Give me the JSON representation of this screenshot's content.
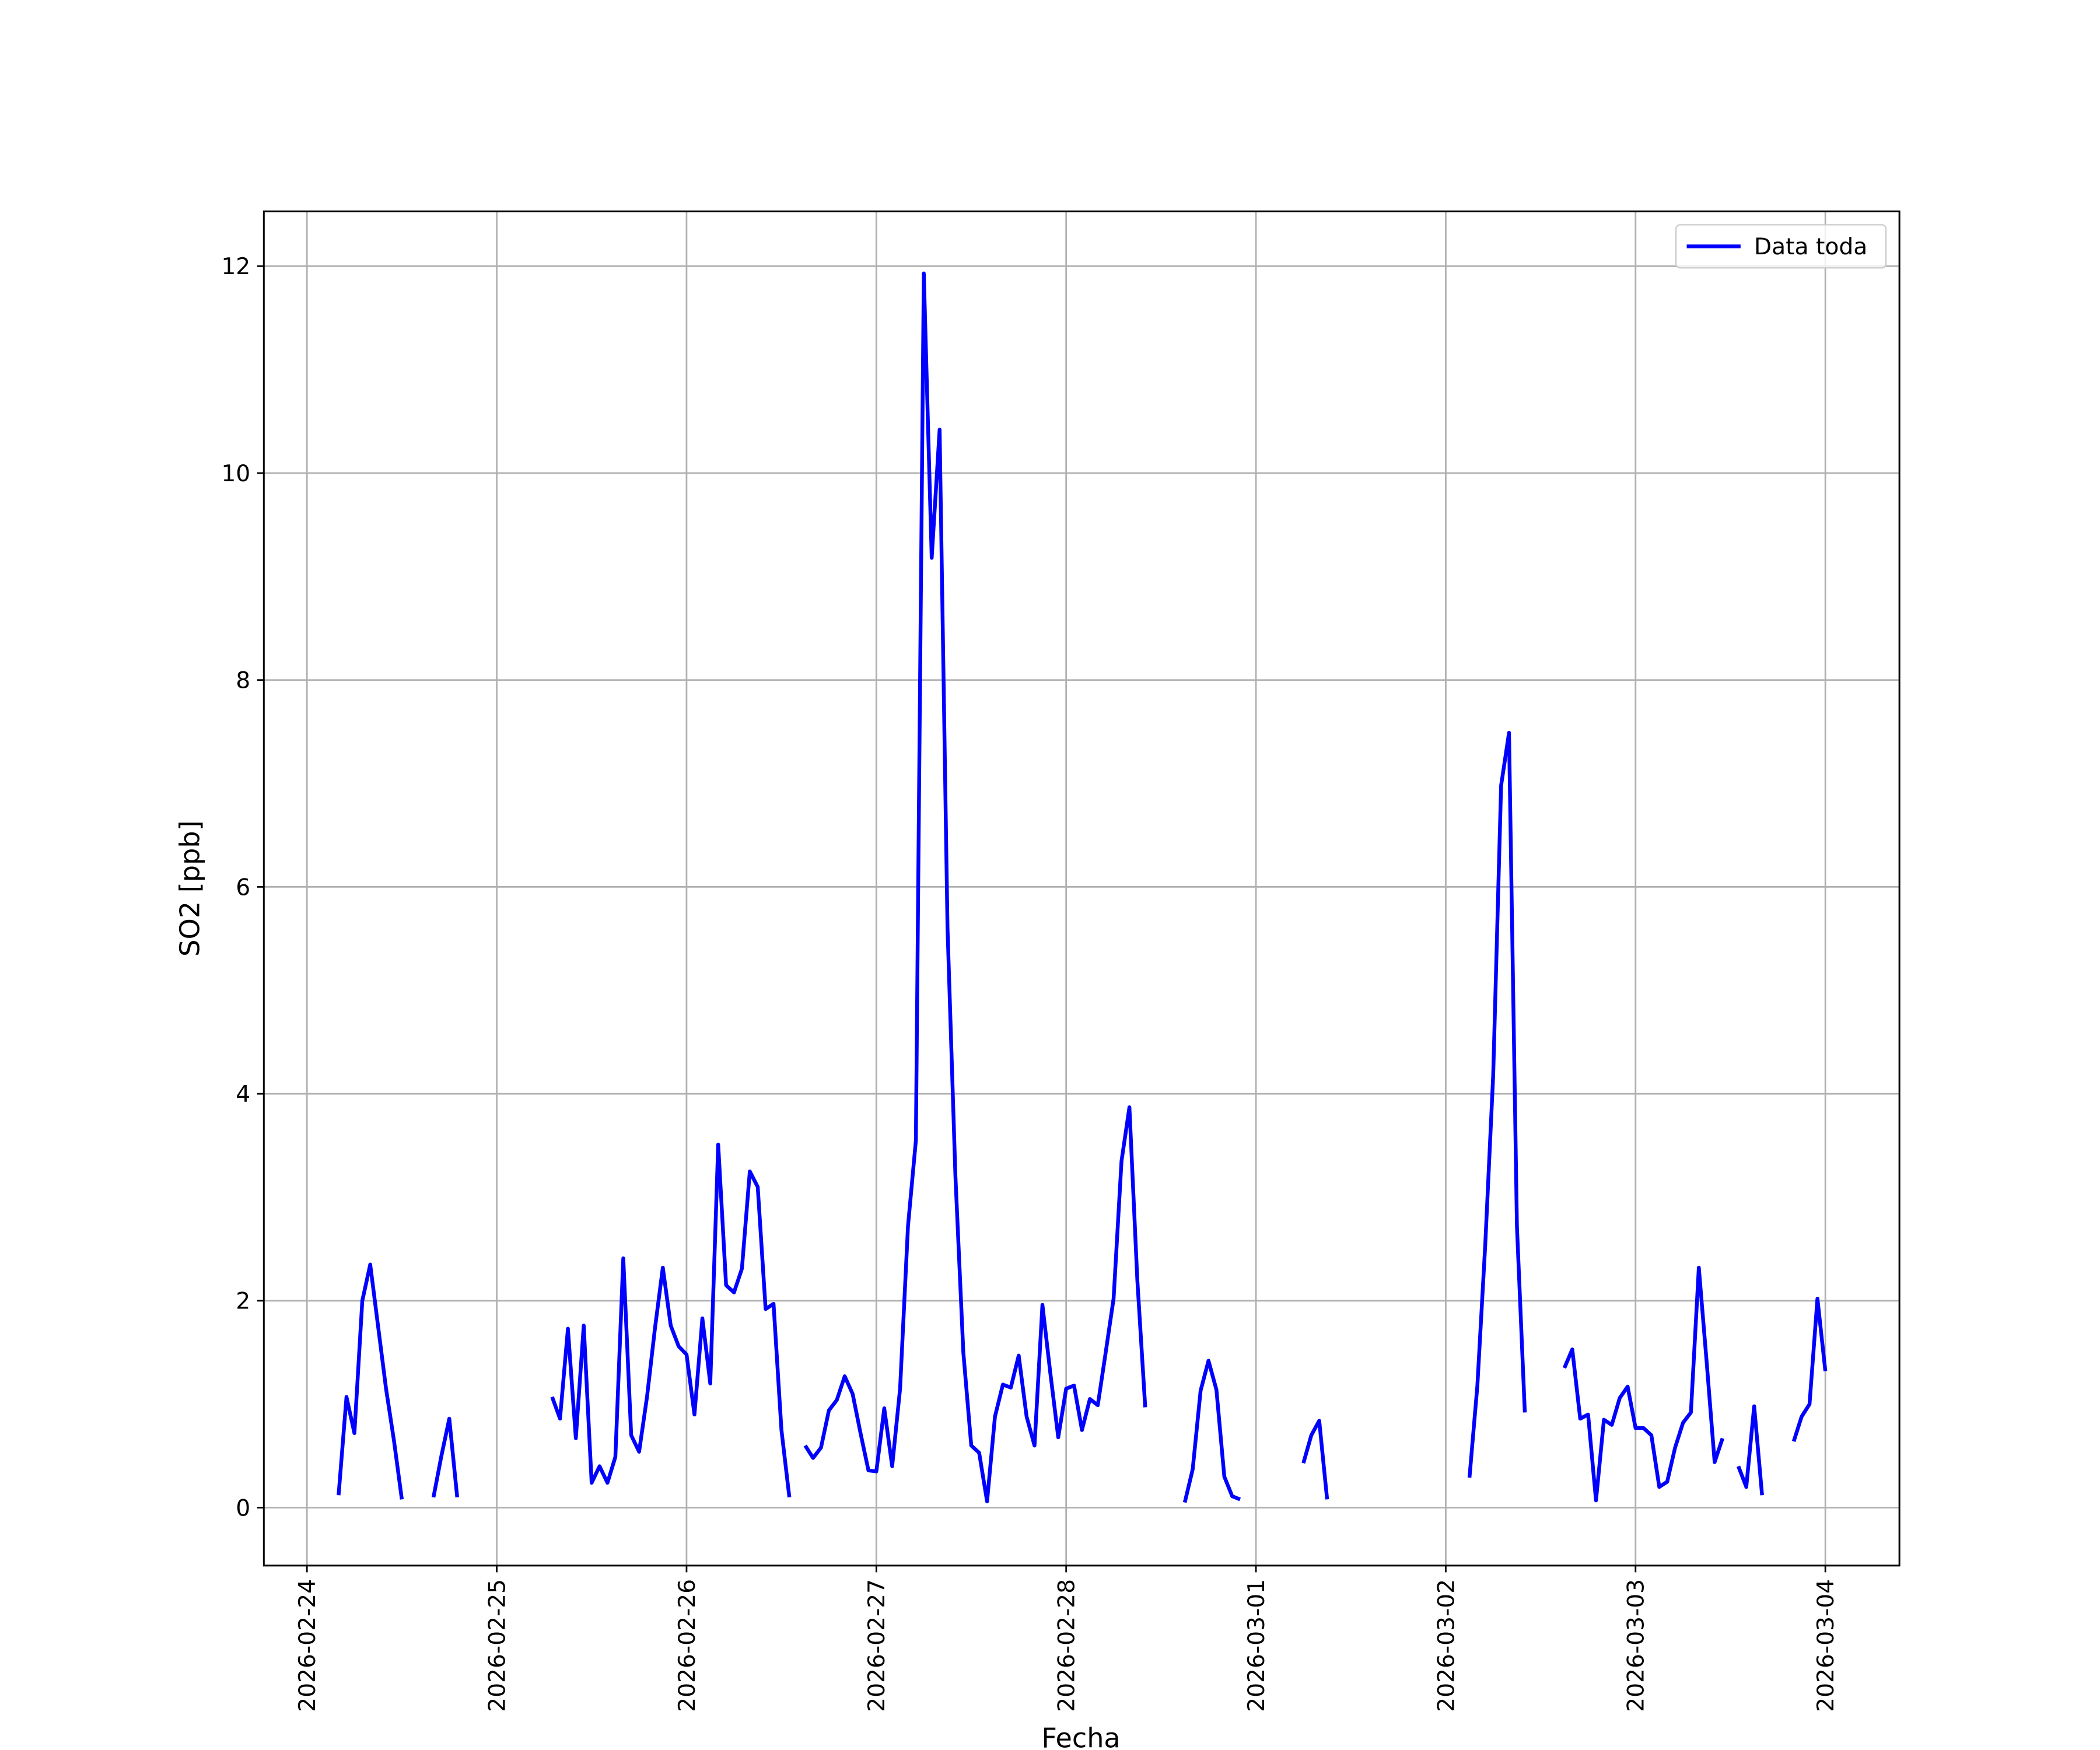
{
  "chart_data": {
    "type": "line",
    "x_label": "Fecha",
    "y_label": "SO2 [ppb]",
    "x": [
      "2026-02-24 04:00",
      "2026-02-24 05:00",
      "2026-02-24 06:00",
      "2026-02-24 07:00",
      "2026-02-24 08:00",
      "2026-02-24 09:00",
      "2026-02-24 10:00",
      "2026-02-24 11:00",
      "2026-02-24 12:00",
      "2026-02-24 13:00",
      "2026-02-24 16:00",
      "2026-02-24 17:00",
      "2026-02-24 18:00",
      "2026-02-24 19:00",
      "2026-02-24 20:00",
      "2026-02-25 07:00",
      "2026-02-25 08:00",
      "2026-02-25 09:00",
      "2026-02-25 10:00",
      "2026-02-25 11:00",
      "2026-02-25 12:00",
      "2026-02-25 13:00",
      "2026-02-25 14:00",
      "2026-02-25 15:00",
      "2026-02-25 16:00",
      "2026-02-25 17:00",
      "2026-02-25 18:00",
      "2026-02-25 19:00",
      "2026-02-25 20:00",
      "2026-02-25 21:00",
      "2026-02-25 22:00",
      "2026-02-25 23:00",
      "2026-02-26 00:00",
      "2026-02-26 01:00",
      "2026-02-26 02:00",
      "2026-02-26 03:00",
      "2026-02-26 04:00",
      "2026-02-26 05:00",
      "2026-02-26 06:00",
      "2026-02-26 07:00",
      "2026-02-26 08:00",
      "2026-02-26 09:00",
      "2026-02-26 10:00",
      "2026-02-26 11:00",
      "2026-02-26 12:00",
      "2026-02-26 13:00",
      "2026-02-26 14:00",
      "2026-02-26 15:00",
      "2026-02-26 16:00",
      "2026-02-26 17:00",
      "2026-02-26 18:00",
      "2026-02-26 19:00",
      "2026-02-26 20:00",
      "2026-02-26 21:00",
      "2026-02-26 22:00",
      "2026-02-26 23:00",
      "2026-02-27 00:00",
      "2026-02-27 01:00",
      "2026-02-27 02:00",
      "2026-02-27 03:00",
      "2026-02-27 04:00",
      "2026-02-27 05:00",
      "2026-02-27 06:00",
      "2026-02-27 07:00",
      "2026-02-27 08:00",
      "2026-02-27 09:00",
      "2026-02-27 10:00",
      "2026-02-27 11:00",
      "2026-02-27 12:00",
      "2026-02-27 13:00",
      "2026-02-27 14:00",
      "2026-02-27 15:00",
      "2026-02-27 16:00",
      "2026-02-27 17:00",
      "2026-02-27 18:00",
      "2026-02-27 19:00",
      "2026-02-27 20:00",
      "2026-02-27 21:00",
      "2026-02-27 22:00",
      "2026-02-27 23:00",
      "2026-02-28 00:00",
      "2026-02-28 01:00",
      "2026-02-28 02:00",
      "2026-02-28 03:00",
      "2026-02-28 04:00",
      "2026-02-28 05:00",
      "2026-02-28 06:00",
      "2026-02-28 07:00",
      "2026-02-28 08:00",
      "2026-02-28 09:00",
      "2026-02-28 10:00",
      "2026-02-28 11:00",
      "2026-02-28 15:00",
      "2026-02-28 16:00",
      "2026-02-28 17:00",
      "2026-02-28 18:00",
      "2026-02-28 19:00",
      "2026-02-28 20:00",
      "2026-02-28 21:00",
      "2026-02-28 22:00",
      "2026-02-28 23:00",
      "2026-03-01 06:00",
      "2026-03-01 07:00",
      "2026-03-01 08:00",
      "2026-03-01 09:00",
      "2026-03-01 10:00",
      "2026-03-02 03:00",
      "2026-03-02 04:00",
      "2026-03-02 05:00",
      "2026-03-02 06:00",
      "2026-03-02 07:00",
      "2026-03-02 08:00",
      "2026-03-02 09:00",
      "2026-03-02 10:00",
      "2026-03-02 11:00",
      "2026-03-02 15:00",
      "2026-03-02 16:00",
      "2026-03-02 17:00",
      "2026-03-02 18:00",
      "2026-03-02 19:00",
      "2026-03-02 20:00",
      "2026-03-02 21:00",
      "2026-03-02 22:00",
      "2026-03-02 23:00",
      "2026-03-03 00:00",
      "2026-03-03 01:00",
      "2026-03-03 02:00",
      "2026-03-03 03:00",
      "2026-03-03 04:00",
      "2026-03-03 05:00",
      "2026-03-03 06:00",
      "2026-03-03 07:00",
      "2026-03-03 08:00",
      "2026-03-03 09:00",
      "2026-03-03 10:00",
      "2026-03-03 11:00",
      "2026-03-03 12:00",
      "2026-03-03 13:00",
      "2026-03-03 14:00",
      "2026-03-03 15:00",
      "2026-03-03 16:00",
      "2026-03-03 17:00",
      "2026-03-03 20:00",
      "2026-03-03 21:00",
      "2026-03-03 22:00",
      "2026-03-03 23:00",
      "2026-03-04 00:00"
    ],
    "series": [
      {
        "name": "Data toda",
        "color": "#0000ff",
        "values": [
          0.12,
          1.07,
          0.72,
          2.0,
          2.35,
          1.75,
          1.15,
          0.65,
          0.08,
          null,
          0.1,
          0.5,
          0.86,
          0.1,
          null,
          1.07,
          0.86,
          1.73,
          0.67,
          1.76,
          0.24,
          0.4,
          0.24,
          0.49,
          2.41,
          0.7,
          0.54,
          1.07,
          1.73,
          2.32,
          1.76,
          1.56,
          1.48,
          0.9,
          1.83,
          1.2,
          3.51,
          2.15,
          2.08,
          2.31,
          3.25,
          3.1,
          1.92,
          1.97,
          0.75,
          0.1,
          null,
          0.6,
          0.48,
          0.58,
          0.94,
          1.04,
          1.27,
          1.1,
          0.72,
          0.36,
          0.35,
          0.96,
          0.4,
          1.15,
          2.72,
          3.55,
          11.93,
          9.18,
          10.42,
          5.6,
          3.2,
          1.5,
          0.6,
          0.53,
          0.06,
          0.88,
          1.19,
          1.16,
          1.47,
          0.88,
          0.6,
          1.96,
          1.3,
          0.68,
          1.15,
          1.18,
          0.75,
          1.05,
          0.99,
          1.5,
          2.02,
          3.35,
          3.87,
          2.2,
          0.97,
          null,
          0.05,
          0.37,
          1.13,
          1.42,
          1.14,
          0.3,
          0.11,
          0.08,
          null,
          0.43,
          0.7,
          0.84,
          0.08,
          null,
          0.29,
          1.18,
          2.55,
          4.18,
          6.98,
          7.49,
          2.72,
          0.92,
          null,
          1.35,
          1.53,
          0.86,
          0.9,
          0.07,
          0.85,
          0.8,
          1.06,
          1.17,
          0.77,
          0.77,
          0.7,
          0.2,
          0.25,
          0.58,
          0.82,
          0.92,
          2.32,
          1.4,
          0.44,
          0.67,
          null,
          0.4,
          0.2,
          0.98,
          0.12,
          null,
          0.64,
          0.88,
          1.0,
          2.02,
          1.32
        ]
      }
    ],
    "xlim": [
      "2026-02-23 18:33",
      "2026-03-04 09:22"
    ],
    "xticks": [
      "2026-02-24",
      "2026-02-25",
      "2026-02-26",
      "2026-02-27",
      "2026-02-28",
      "2026-03-01",
      "2026-03-02",
      "2026-03-03",
      "2026-03-04"
    ],
    "ylim": [
      -0.56,
      12.53
    ],
    "yticks": [
      0,
      2,
      4,
      6,
      8,
      10,
      12
    ],
    "grid": true,
    "legend": "upper right"
  }
}
